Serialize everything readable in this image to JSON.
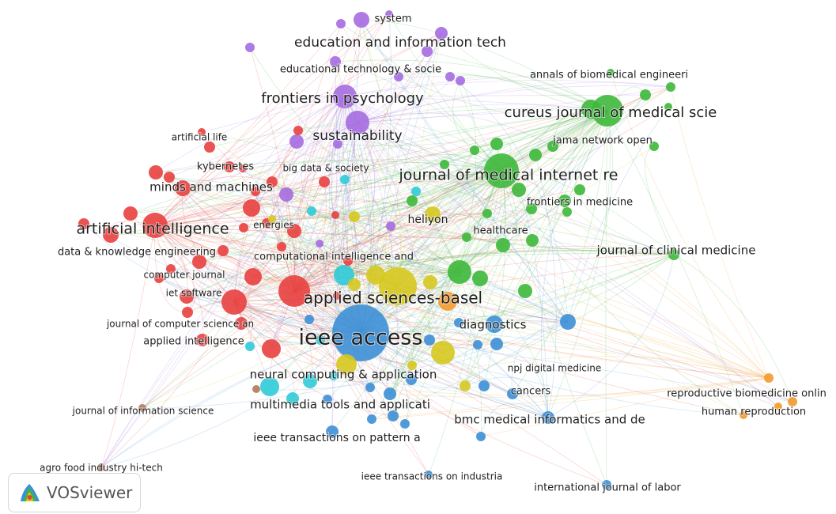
{
  "colors": {
    "red": "#e8403f",
    "purple": "#a56ce0",
    "green": "#3db83a",
    "yellow": "#d6c81f",
    "blue": "#3d8fd6",
    "cyan": "#2fcbd8",
    "orange": "#f29a2e",
    "brown": "#b07a5a"
  },
  "logo": {
    "text": "VOSviewer",
    "icon": "vosviewer-logo-icon"
  },
  "labels": [
    {
      "id": "system",
      "text": "system",
      "cluster": "purple"
    },
    {
      "id": "education",
      "text": "education and information tech",
      "cluster": "purple"
    },
    {
      "id": "edtech",
      "text": "educational technology & socie",
      "cluster": "purple"
    },
    {
      "id": "frontiers-psych",
      "text": "frontiers in psychology",
      "cluster": "purple"
    },
    {
      "id": "sustainability",
      "text": "sustainability",
      "cluster": "purple"
    },
    {
      "id": "annals",
      "text": "annals of biomedical engineeri",
      "cluster": "green"
    },
    {
      "id": "cureus",
      "text": "cureus journal of medical scie",
      "cluster": "green"
    },
    {
      "id": "jama",
      "text": "jama network open",
      "cluster": "green"
    },
    {
      "id": "jmir",
      "text": "journal of medical internet re",
      "cluster": "green"
    },
    {
      "id": "frontiers-med",
      "text": "frontiers in medicine",
      "cluster": "green"
    },
    {
      "id": "healthcare",
      "text": "healthcare",
      "cluster": "green"
    },
    {
      "id": "jcm",
      "text": "journal of clinical medicine",
      "cluster": "green"
    },
    {
      "id": "artificial-life",
      "text": "artificial life",
      "cluster": "red"
    },
    {
      "id": "kybernetes",
      "text": "kybernetes",
      "cluster": "red"
    },
    {
      "id": "bigdata",
      "text": "big data & society",
      "cluster": "purple"
    },
    {
      "id": "minds",
      "text": "minds and machines",
      "cluster": "red"
    },
    {
      "id": "ai",
      "text": "artificial intelligence",
      "cluster": "red"
    },
    {
      "id": "energies",
      "text": "energies",
      "cluster": "yellow"
    },
    {
      "id": "heliyon",
      "text": "heliyon",
      "cluster": "yellow"
    },
    {
      "id": "dke",
      "text": "data & knowledge engineering",
      "cluster": "red"
    },
    {
      "id": "cia",
      "text": "computational intelligence and",
      "cluster": "yellow"
    },
    {
      "id": "compjournal",
      "text": "computer journal",
      "cluster": "red"
    },
    {
      "id": "ietsoftware",
      "text": "iet software",
      "cluster": "red"
    },
    {
      "id": "applsci",
      "text": "applied sciences-basel",
      "cluster": "yellow"
    },
    {
      "id": "jcsa",
      "text": "journal of computer science an",
      "cluster": "red"
    },
    {
      "id": "applintel",
      "text": "applied intelligence",
      "cluster": "red"
    },
    {
      "id": "ieeeaccess",
      "text": "ieee access",
      "cluster": "blue"
    },
    {
      "id": "diagnostics",
      "text": "diagnostics",
      "cluster": "blue"
    },
    {
      "id": "npj",
      "text": "npj digital medicine",
      "cluster": "blue"
    },
    {
      "id": "ncaa",
      "text": "neural computing & application",
      "cluster": "yellow"
    },
    {
      "id": "cancers",
      "text": "cancers",
      "cluster": "blue"
    },
    {
      "id": "rbo",
      "text": "reproductive biomedicine onlin",
      "cluster": "orange"
    },
    {
      "id": "jis",
      "text": "journal of information science",
      "cluster": "brown"
    },
    {
      "id": "mta",
      "text": "multimedia tools and applicati",
      "cluster": "cyan"
    },
    {
      "id": "humrep",
      "text": "human reproduction",
      "cluster": "orange"
    },
    {
      "id": "bmc",
      "text": "bmc medical informatics and de",
      "cluster": "blue"
    },
    {
      "id": "tpami",
      "text": "ieee transactions on pattern a",
      "cluster": "blue"
    },
    {
      "id": "agro",
      "text": "agro food industry hi-tech",
      "cluster": "brown"
    },
    {
      "id": "tii",
      "text": "ieee transactions on industria",
      "cluster": "blue"
    },
    {
      "id": "ijl",
      "text": "international journal of labor",
      "cluster": "blue"
    }
  ]
}
